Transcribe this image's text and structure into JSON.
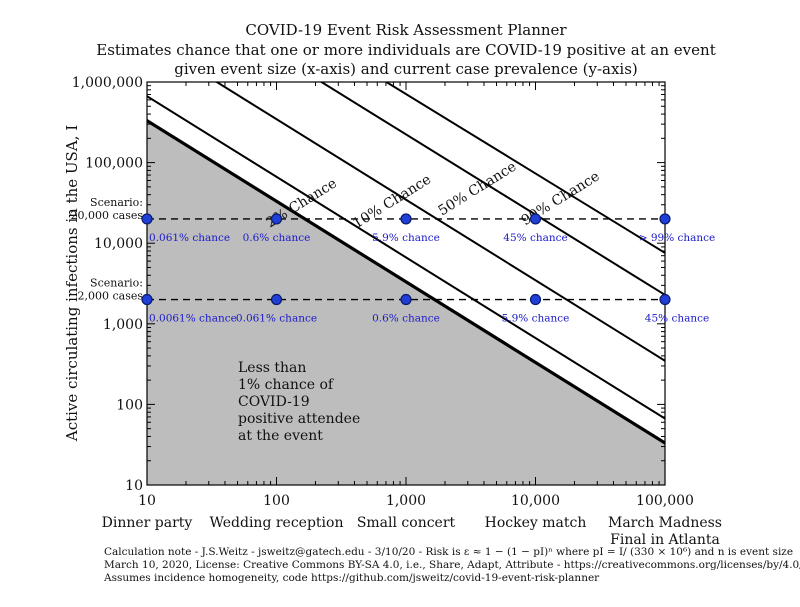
{
  "chart_data": {
    "type": "line",
    "title": [
      "COVID-19 Event Risk Assessment Planner",
      "Estimates chance that one or more individuals are COVID-19 positive at an event",
      "given event size (x-axis) and current case prevalence (y-axis)"
    ],
    "xlabel": "",
    "ylabel": "Active circulating infections in the USA, I",
    "x_scale": "log",
    "y_scale": "log",
    "xlim": [
      10,
      100000
    ],
    "ylim": [
      10,
      1000000
    ],
    "x_ticks": [
      10,
      100,
      1000,
      10000,
      100000
    ],
    "x_tick_labels": [
      "10",
      "100",
      "1,000",
      "10,000",
      "100,000"
    ],
    "y_ticks": [
      10,
      100,
      1000,
      10000,
      100000,
      1000000
    ],
    "y_tick_labels": [
      "10",
      "100",
      "1,000",
      "10,000",
      "100,000",
      "1,000,000"
    ],
    "event_categories": [
      {
        "n": 10,
        "label": "Dinner party"
      },
      {
        "n": 100,
        "label": "Wedding reception"
      },
      {
        "n": 1000,
        "label": "Small concert"
      },
      {
        "n": 10000,
        "label": "Hockey match"
      },
      {
        "n": 100000,
        "label": "March Madness Final in Atlanta"
      }
    ],
    "population": 330000000,
    "risk_lines": [
      {
        "p": 0.01,
        "label": "",
        "thick": true
      },
      {
        "p": 0.02,
        "label": "2% Chance",
        "thick": false
      },
      {
        "p": 0.1,
        "label": "10% Chance",
        "thick": false
      },
      {
        "p": 0.5,
        "label": "50% Chance",
        "thick": false
      },
      {
        "p": 0.9,
        "label": "90% Chance",
        "thick": false
      }
    ],
    "scenarios": [
      {
        "I": 20000,
        "label_line1": "Scenario:",
        "label_line2": "20,000 cases",
        "points": [
          {
            "n": 10,
            "label": "0.061% chance"
          },
          {
            "n": 100,
            "label": "0.6% chance"
          },
          {
            "n": 1000,
            "label": "5.9% chance"
          },
          {
            "n": 10000,
            "label": "45% chance"
          },
          {
            "n": 100000,
            "label": "> 99% chance"
          }
        ]
      },
      {
        "I": 2000,
        "label_line1": "Scenario:",
        "label_line2": "2,000 cases",
        "points": [
          {
            "n": 10,
            "label": "0.0061% chance"
          },
          {
            "n": 100,
            "label": "0.061% chance"
          },
          {
            "n": 1000,
            "label": "0.6% chance"
          },
          {
            "n": 10000,
            "label": "5.9% chance"
          },
          {
            "n": 100000,
            "label": "45% chance"
          }
        ]
      }
    ],
    "shaded_region_label": [
      "Less than",
      "1% chance of",
      "COVID-19",
      "positive attendee",
      "at the event"
    ],
    "colors": {
      "shade": "#bdbdbd",
      "point": "#1f3fd6",
      "point_stroke": "#0a1a6b",
      "point_label": "#1a1acc",
      "lines": "#000000"
    }
  },
  "footnote": {
    "line1": "Calculation note - J.S.Weitz - jsweitz@gatech.edu - 3/10/20 - Risk is ε ≈ 1 − (1 − pI)ⁿ where pI = I/ (330 × 10⁶) and n is event size",
    "line2": "March 10, 2020, License: Creative Commons BY-SA 4.0, i.e., Share, Adapt, Attribute - https://creativecommons.org/licenses/by/4.0/",
    "line3": "Assumes incidence homogeneity, code https://github.com/jsweitz/covid-19-event-risk-planner"
  }
}
